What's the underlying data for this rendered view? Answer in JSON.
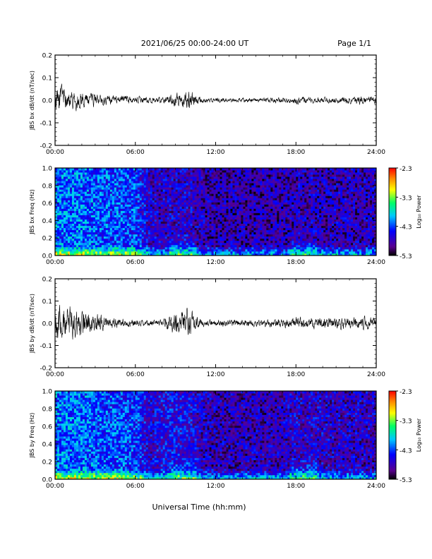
{
  "header": {
    "date_range": "2021/06/25  00:00-24:00 UT",
    "page": "Page 1/1"
  },
  "footer": {
    "xlabel": "Universal Time (hh:mm)"
  },
  "colorbar": {
    "label": "Log₁₀ Power",
    "ticks": [
      "-2.3",
      "-3.3",
      "-4.3",
      "-5.3"
    ],
    "range": [
      -5.3,
      -2.3
    ],
    "colors": [
      "#000000",
      "#5a0090",
      "#0000ff",
      "#00c8ff",
      "#00ff66",
      "#ffff00",
      "#ff8800",
      "#ff0000"
    ]
  },
  "chart_data": [
    {
      "type": "line",
      "ylabel": "JBS bx dB/dt (nT/sec)",
      "xlim": [
        0,
        24
      ],
      "ylim": [
        -0.2,
        0.2
      ],
      "xticks": [
        "00:00",
        "06:00",
        "12:00",
        "18:00",
        "24:00"
      ],
      "yticks": [
        "0.2",
        "0.1",
        "0.0",
        "-0.1",
        "-0.2"
      ],
      "series": [
        {
          "x": [
            0,
            1,
            2,
            3,
            4,
            5,
            6,
            7,
            8,
            9,
            10,
            11,
            12,
            13,
            14,
            15,
            16,
            17,
            18,
            19,
            20,
            21,
            22,
            23,
            24
          ],
          "amplitude": [
            0.045,
            0.035,
            0.025,
            0.02,
            0.015,
            0.015,
            0.012,
            0.01,
            0.01,
            0.02,
            0.03,
            0.008,
            0.008,
            0.007,
            0.007,
            0.007,
            0.008,
            0.009,
            0.012,
            0.01,
            0.01,
            0.01,
            0.012,
            0.015,
            0.01
          ]
        }
      ]
    },
    {
      "type": "heatmap",
      "ylabel": "JBS bx Freq (Hz)",
      "xlim": [
        0,
        24
      ],
      "ylim": [
        0,
        1
      ],
      "xticks": [
        "00:00",
        "06:00",
        "12:00",
        "18:00",
        "24:00"
      ],
      "yticks": [
        "1.0",
        "0.8",
        "0.6",
        "0.4",
        "0.2",
        "0.0"
      ],
      "x": [
        0,
        1,
        2,
        3,
        4,
        5,
        6,
        7,
        8,
        9,
        10,
        11,
        12,
        13,
        14,
        15,
        16,
        17,
        18,
        19,
        20,
        21,
        22,
        23,
        24
      ],
      "background_log_power": [
        -4.2,
        -4.2,
        -4.2,
        -4.25,
        -4.3,
        -4.3,
        -4.35,
        -4.7,
        -4.75,
        -4.7,
        -4.7,
        -4.8,
        -4.85,
        -4.85,
        -4.85,
        -4.85,
        -4.85,
        -4.85,
        -4.8,
        -4.8,
        -4.8,
        -4.8,
        -4.8,
        -4.8,
        -4.8
      ]
    },
    {
      "type": "line",
      "ylabel": "JBS by dB/dt (nT/sec)",
      "xlim": [
        0,
        24
      ],
      "ylim": [
        -0.2,
        0.2
      ],
      "xticks": [
        "00:00",
        "06:00",
        "12:00",
        "18:00",
        "24:00"
      ],
      "yticks": [
        "0.2",
        "0.1",
        "0.0",
        "-0.1",
        "-0.2"
      ],
      "series": [
        {
          "x": [
            0,
            1,
            2,
            3,
            4,
            5,
            6,
            7,
            8,
            9,
            10,
            11,
            12,
            13,
            14,
            15,
            16,
            17,
            18,
            19,
            20,
            21,
            22,
            23,
            24
          ],
          "amplitude": [
            0.06,
            0.055,
            0.045,
            0.03,
            0.02,
            0.015,
            0.012,
            0.01,
            0.012,
            0.04,
            0.045,
            0.012,
            0.012,
            0.012,
            0.012,
            0.012,
            0.012,
            0.015,
            0.02,
            0.018,
            0.018,
            0.018,
            0.02,
            0.02,
            0.018
          ]
        }
      ]
    },
    {
      "type": "heatmap",
      "ylabel": "JBS by Freq (Hz)",
      "xlim": [
        0,
        24
      ],
      "ylim": [
        0,
        1
      ],
      "xticks": [
        "00:00",
        "06:00",
        "12:00",
        "18:00",
        "24:00"
      ],
      "yticks": [
        "1.0",
        "0.8",
        "0.6",
        "0.4",
        "0.2",
        "0.0"
      ],
      "x": [
        0,
        1,
        2,
        3,
        4,
        5,
        6,
        7,
        8,
        9,
        10,
        11,
        12,
        13,
        14,
        15,
        16,
        17,
        18,
        19,
        20,
        21,
        22,
        23,
        24
      ],
      "background_log_power": [
        -4.2,
        -4.2,
        -4.2,
        -4.25,
        -4.3,
        -4.3,
        -4.35,
        -4.7,
        -4.6,
        -4.55,
        -4.6,
        -4.75,
        -4.8,
        -4.8,
        -4.8,
        -4.8,
        -4.8,
        -4.8,
        -4.7,
        -4.7,
        -4.7,
        -4.75,
        -4.75,
        -4.75,
        -4.75
      ]
    }
  ]
}
